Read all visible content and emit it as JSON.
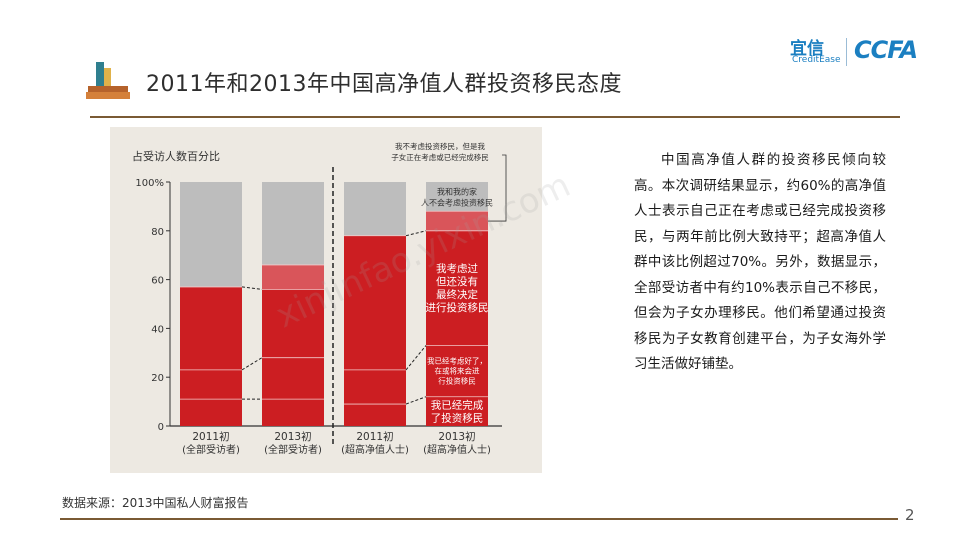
{
  "header": {
    "title": "2011年和2013年中国高净值人群投资移民态度"
  },
  "logo": {
    "cn": "宜信",
    "en": "CreditEase",
    "brand": "CCFA"
  },
  "description": "中国高净值人群的投资移民倾向较高。本次调研结果显示，约60%的高净值人士表示自己正在考虑或已经完成投资移民，与两年前比例大致持平；超高净值人群中该比例超过70%。另外，数据显示，全部受访者中有约10%表示自己不移民，但会为子女办理移民。他们希望通过投资移民为子女教育创建平台，为子女海外学习生活做好铺垫。",
  "footer": {
    "source": "数据来源：2013中国私人财富报告",
    "page": "2"
  },
  "watermark": "xinjinfao.yixin.com",
  "colors": {
    "red": "#cc1e22",
    "pink": "#d9555a",
    "gray": "#bdbdbd",
    "rule": "#7a5a34"
  },
  "chart_data": {
    "type": "bar",
    "stacked": true,
    "ylabel": "占受访人数百分比",
    "ylim": [
      0,
      100
    ],
    "yticks": [
      0,
      20,
      40,
      60,
      80,
      100
    ],
    "yticklabels": [
      "0",
      "20",
      "40",
      "60",
      "80",
      "100%"
    ],
    "categories": [
      {
        "line1": "2011初",
        "line2": "(全部受访者)"
      },
      {
        "line1": "2013初",
        "line2": "(全部受访者)"
      },
      {
        "line1": "2011初",
        "line2": "(超高净值人士)"
      },
      {
        "line1": "2013初",
        "line2": "(超高净值人士)"
      }
    ],
    "series": [
      {
        "name": "我已经完成了投资移民",
        "values": [
          11,
          11,
          9,
          12
        ]
      },
      {
        "name": "我已经考虑好了，现在或将来会进行投资移民",
        "values": [
          12,
          17,
          14,
          21
        ]
      },
      {
        "name": "我考虑过，但还没有最终决定进行投资移民",
        "values": [
          34,
          28,
          55,
          47
        ]
      },
      {
        "name": "我不考虑投资移民，但是我的子女正在考虑或已经完成移民",
        "values": [
          0,
          10,
          0,
          8
        ]
      },
      {
        "name": "我和我的家人不会考虑投资移民",
        "values": [
          43,
          34,
          22,
          12
        ]
      }
    ]
  }
}
